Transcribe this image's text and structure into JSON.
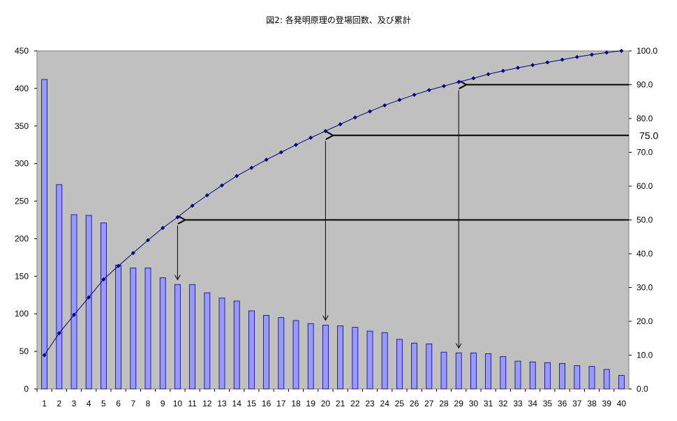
{
  "chart_data": {
    "type": "bar",
    "title": "図2: 各発明原理の登場回数、及び累計",
    "categories": [
      "1",
      "2",
      "3",
      "4",
      "5",
      "6",
      "7",
      "8",
      "9",
      "10",
      "11",
      "12",
      "13",
      "14",
      "15",
      "16",
      "17",
      "18",
      "19",
      "20",
      "21",
      "22",
      "23",
      "24",
      "25",
      "26",
      "27",
      "28",
      "29",
      "30",
      "31",
      "32",
      "33",
      "34",
      "35",
      "36",
      "37",
      "38",
      "39",
      "40"
    ],
    "series": [
      {
        "axis": "left",
        "mark": "bar",
        "color": "#9999ff",
        "values": [
          412,
          272,
          232,
          231,
          221,
          165,
          161,
          161,
          148,
          139,
          139,
          128,
          121,
          117,
          104,
          98,
          95,
          91,
          87,
          85,
          84,
          82,
          77,
          75,
          66,
          61,
          60,
          49,
          48,
          48,
          47,
          43,
          37,
          36,
          35,
          34,
          31,
          30,
          26,
          18
        ]
      },
      {
        "axis": "right",
        "mark": "line",
        "color": "#000080",
        "values": [
          10.0,
          16.5,
          21.9,
          27.1,
          32.4,
          36.4,
          40.2,
          44.0,
          47.6,
          50.8,
          54.2,
          57.3,
          60.2,
          63.0,
          65.4,
          67.8,
          70.0,
          72.2,
          74.3,
          76.3,
          78.3,
          80.3,
          82.1,
          83.9,
          85.5,
          87.0,
          88.4,
          89.6,
          90.8,
          91.9,
          93.1,
          94.1,
          95.0,
          95.8,
          96.6,
          97.4,
          98.2,
          98.9,
          99.5,
          100.0
        ]
      }
    ],
    "y_left": {
      "min": 0,
      "max": 450,
      "step": 50,
      "tick_labels": [
        "0",
        "50",
        "100",
        "150",
        "200",
        "250",
        "300",
        "350",
        "400",
        "450"
      ]
    },
    "y_right": {
      "min": 0,
      "max": 100,
      "step": 10,
      "tick_labels": [
        "0.0",
        "10.0",
        "20.0",
        "30.0",
        "40.0",
        "50.0",
        "60.0",
        "70.0",
        "80.0",
        "90.0",
        "100.0"
      ]
    },
    "plot_background": "#c0c0c0",
    "grid": false,
    "legend": "none",
    "annotations": [
      {
        "text": "75.0",
        "level": 75,
        "x_category": 20
      },
      {
        "text": "",
        "level": 90,
        "x_category": 29
      },
      {
        "text": "",
        "level": 50,
        "x_category": 10
      }
    ]
  }
}
